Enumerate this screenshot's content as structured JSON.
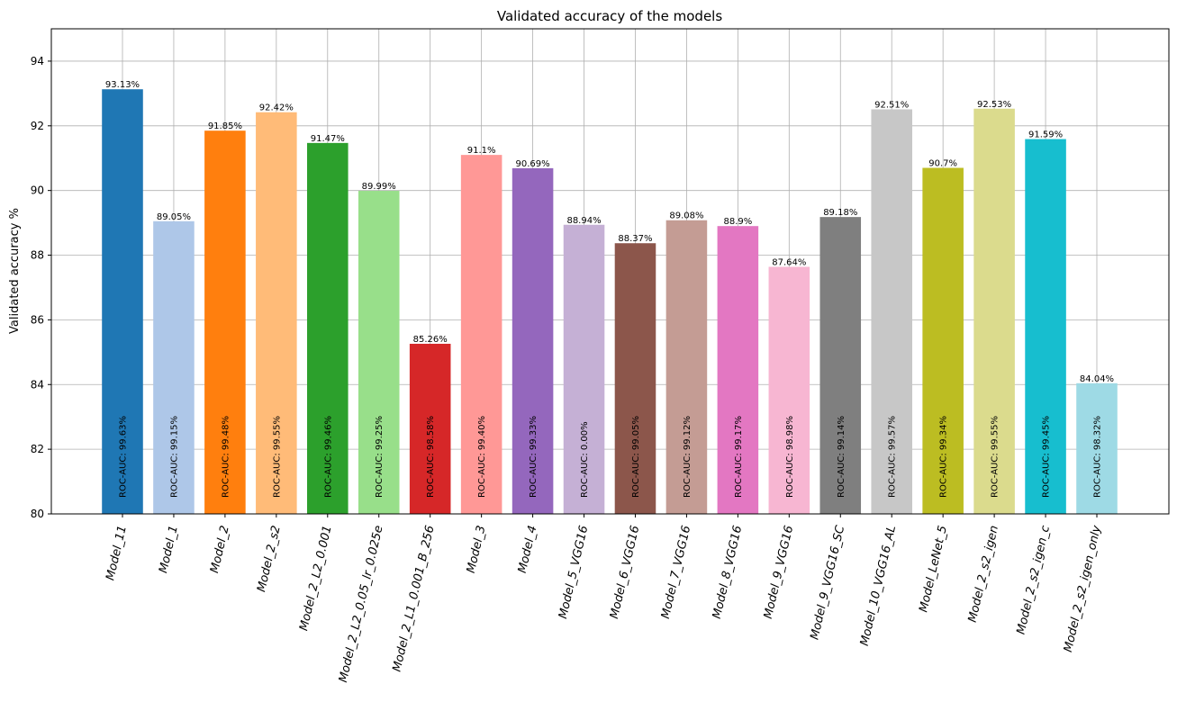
{
  "chart_data": {
    "type": "bar",
    "title": "Validated accuracy of the models",
    "xlabel": "",
    "ylabel": "Validated accuracy %",
    "ylim": [
      80,
      95
    ],
    "yticks": [
      80,
      82,
      84,
      86,
      88,
      90,
      92,
      94
    ],
    "grid": true,
    "categories": [
      "Model_11",
      "Model_1",
      "Model_2",
      "Model_2_s2",
      "Model_2_L2_0.001",
      "Model_2_L2_0.05_lr_0.025e",
      "Model_2_L1_0.001_B_256",
      "Model_3",
      "Model_4",
      "Model_5_VGG16",
      "Model_6_VGG16",
      "Model_7_VGG16",
      "Model_8_VGG16",
      "Model_9_VGG16",
      "Model_9_VGG16_SC",
      "Model_10_VGG16_AL",
      "Model_LeNet_5",
      "Model_2_s2_igen",
      "Model_2_s2_igen_c",
      "Model_2_s2_igen_only"
    ],
    "values": [
      93.13,
      89.05,
      91.85,
      92.42,
      91.47,
      89.99,
      85.26,
      91.1,
      90.69,
      88.94,
      88.37,
      89.08,
      88.9,
      87.64,
      89.18,
      92.51,
      90.7,
      92.53,
      91.59,
      84.04
    ],
    "value_labels": [
      "93.13%",
      "89.05%",
      "91.85%",
      "92.42%",
      "91.47%",
      "89.99%",
      "85.26%",
      "91.1%",
      "90.69%",
      "88.94%",
      "88.37%",
      "89.08%",
      "88.9%",
      "87.64%",
      "89.18%",
      "92.51%",
      "90.7%",
      "92.53%",
      "91.59%",
      "84.04%"
    ],
    "roc_auc_labels": [
      "ROC-AUC: 99.63%",
      "ROC-AUC: 99.15%",
      "ROC-AUC: 99.48%",
      "ROC-AUC: 99.55%",
      "ROC-AUC: 99.46%",
      "ROC-AUC: 99.25%",
      "ROC-AUC: 98.58%",
      "ROC-AUC: 99.40%",
      "ROC-AUC: 99.33%",
      "ROC-AUC: 0.00%",
      "ROC-AUC: 99.05%",
      "ROC-AUC: 99.12%",
      "ROC-AUC: 99.17%",
      "ROC-AUC: 98.98%",
      "ROC-AUC: 99.14%",
      "ROC-AUC: 99.57%",
      "ROC-AUC: 99.34%",
      "ROC-AUC: 99.55%",
      "ROC-AUC: 99.45%",
      "ROC-AUC: 98.32%"
    ],
    "colors": [
      "#1f77b4",
      "#aec7e8",
      "#ff7f0e",
      "#ffbb78",
      "#2ca02c",
      "#98df8a",
      "#d62728",
      "#ff9896",
      "#9467bd",
      "#c5b0d5",
      "#8c564b",
      "#c49c94",
      "#e377c2",
      "#f7b6d2",
      "#7f7f7f",
      "#c7c7c7",
      "#bcbd22",
      "#dbdb8d",
      "#17becf",
      "#9edae5"
    ]
  }
}
